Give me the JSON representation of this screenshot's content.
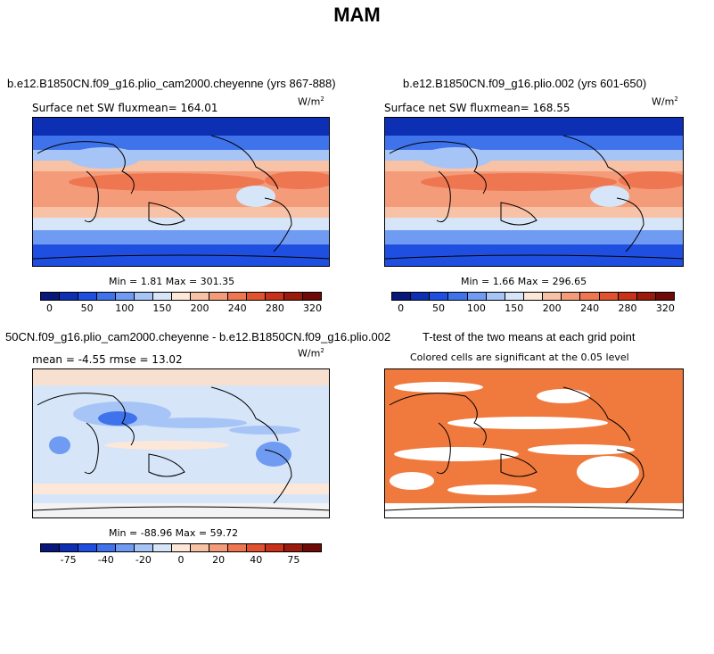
{
  "figure_title": "MAM",
  "panels": {
    "tl": {
      "title": "b.e12.B1850CN.f09_g16.plio_cam2000.cheyenne (yrs 867-888)",
      "subtitle": "Surface net SW flux",
      "mean_text": "mean= 164.01",
      "units": "W/m",
      "units_exp": "2",
      "minmax": "Min =    1.81 Max = 301.35"
    },
    "tr": {
      "title": "b.e12.B1850CN.f09_g16.plio.002 (yrs 601-650)",
      "subtitle": "Surface net SW flux",
      "mean_text": "mean= 168.55",
      "units": "W/m",
      "units_exp": "2",
      "minmax": "Min =    1.66 Max = 296.65"
    },
    "bl": {
      "title": "50CN.f09_g16.plio_cam2000.cheyenne - b.e12.B1850CN.f09_g16.plio.002",
      "subtitle": "mean =   -4.55      rmse =   13.02",
      "units": "W/m",
      "units_exp": "2",
      "minmax": "Min = -88.96 Max =  59.72"
    },
    "br": {
      "title": "T-test of the two means at each grid point",
      "subtitle": "Colored cells are significant at the 0.05 level"
    }
  },
  "colorbars": {
    "abs": {
      "colors": [
        "#08177a",
        "#0c2fb4",
        "#1f4fe0",
        "#3f73ec",
        "#6f9cf2",
        "#a6c4f5",
        "#d6e6f8",
        "#fde7d9",
        "#f8c2a6",
        "#f49c7a",
        "#ee7650",
        "#e1522e",
        "#c8321a",
        "#9a1a0c",
        "#6e0b06"
      ],
      "labels": [
        "0",
        "50",
        "100",
        "150",
        "200",
        "240",
        "280",
        "320"
      ]
    },
    "diff": {
      "colors": [
        "#08177a",
        "#0c2fb4",
        "#1f4fe0",
        "#3f73ec",
        "#6f9cf2",
        "#a6c4f5",
        "#d6e6f8",
        "#fde7d9",
        "#f8c2a6",
        "#f49c7a",
        "#ee7650",
        "#e1522e",
        "#c8321a",
        "#9a1a0c",
        "#6e0b06"
      ],
      "labels": [
        "-75",
        "-40",
        "-20",
        "0",
        "20",
        "40",
        "75"
      ]
    }
  }
}
